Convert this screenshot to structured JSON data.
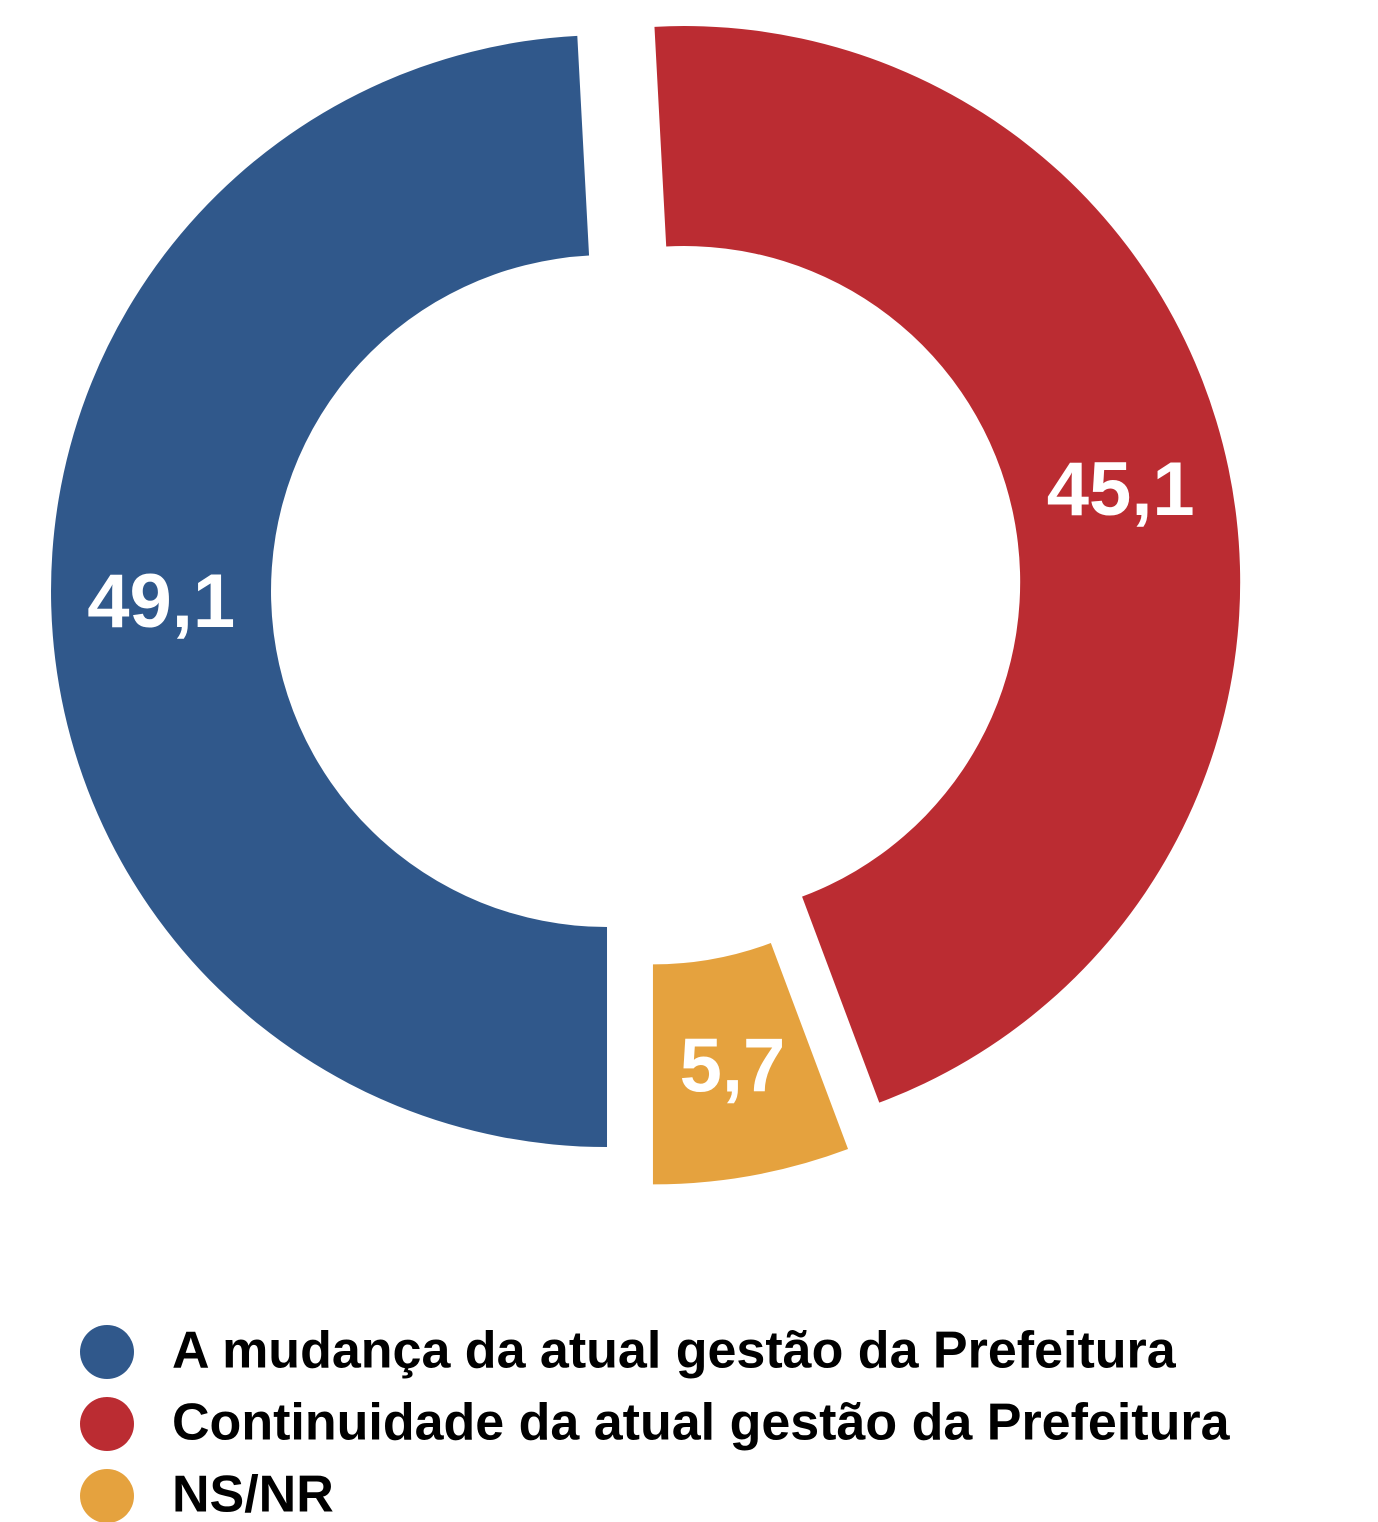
{
  "chart_data": {
    "type": "pie",
    "categories": [
      "Continuidade da atual gestão da Prefeitura",
      "NS/NR",
      "A mudança da atual gestão da  Prefeitura"
    ],
    "values": [
      45.1,
      5.7,
      49.1
    ],
    "value_labels": [
      "45,1",
      "5,7",
      "49,1"
    ],
    "colors": [
      "#bb2c32",
      "#e5a23e",
      "#30588b"
    ],
    "legend_order": [
      2,
      0,
      1
    ]
  }
}
